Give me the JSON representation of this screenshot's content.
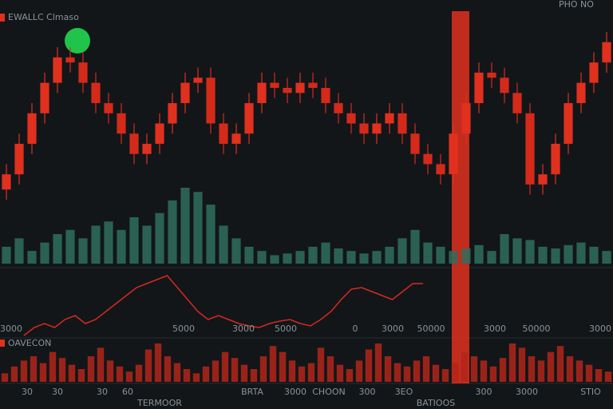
{
  "header": {
    "title": "EWALLC Clmaso",
    "tools": "PHO NO"
  },
  "chart_data": [
    {
      "type": "candlestick",
      "open": [
        55,
        70,
        100,
        130,
        160,
        185,
        180,
        160,
        140,
        130,
        110,
        90,
        100,
        120,
        140,
        160,
        165,
        120,
        100,
        110,
        140,
        160,
        155,
        150,
        160,
        155,
        140,
        130,
        120,
        110,
        120,
        130,
        110,
        90,
        80,
        70,
        110,
        140,
        170,
        165,
        150,
        130,
        60,
        70,
        100,
        140,
        160,
        180
      ],
      "close": [
        70,
        100,
        130,
        160,
        185,
        180,
        160,
        140,
        130,
        110,
        90,
        100,
        120,
        140,
        160,
        165,
        120,
        100,
        110,
        140,
        160,
        155,
        150,
        160,
        155,
        140,
        130,
        120,
        110,
        120,
        130,
        110,
        90,
        80,
        70,
        110,
        140,
        170,
        165,
        150,
        130,
        60,
        70,
        100,
        140,
        160,
        180,
        200
      ],
      "high": [
        80,
        110,
        140,
        170,
        195,
        195,
        190,
        170,
        150,
        140,
        120,
        110,
        130,
        150,
        170,
        175,
        175,
        130,
        120,
        150,
        170,
        170,
        165,
        170,
        170,
        165,
        150,
        140,
        130,
        130,
        140,
        140,
        120,
        100,
        90,
        120,
        150,
        180,
        180,
        175,
        160,
        140,
        80,
        110,
        150,
        170,
        190,
        210
      ],
      "low": [
        45,
        60,
        90,
        120,
        150,
        170,
        150,
        130,
        120,
        100,
        80,
        80,
        90,
        110,
        130,
        150,
        110,
        90,
        90,
        100,
        130,
        145,
        140,
        140,
        145,
        130,
        120,
        110,
        100,
        100,
        110,
        100,
        80,
        70,
        60,
        60,
        100,
        130,
        155,
        140,
        120,
        50,
        50,
        60,
        90,
        130,
        150,
        170
      ],
      "up_color": "#e0301e",
      "down_color": "#d42a1a"
    },
    {
      "type": "bar",
      "color": "#2f6f5e",
      "values": [
        20,
        30,
        15,
        25,
        35,
        40,
        30,
        45,
        50,
        40,
        55,
        45,
        60,
        75,
        90,
        85,
        70,
        45,
        30,
        20,
        15,
        10,
        12,
        15,
        20,
        25,
        18,
        15,
        12,
        15,
        20,
        30,
        40,
        25,
        20,
        15,
        18,
        22,
        15,
        35,
        30,
        28,
        20,
        18,
        22,
        25,
        20,
        15
      ]
    },
    {
      "type": "line",
      "color": "#d42a1f",
      "values": [
        10,
        20,
        25,
        20,
        30,
        35,
        25,
        30,
        40,
        50,
        60,
        70,
        75,
        80,
        85,
        70,
        55,
        40,
        30,
        35,
        30,
        25,
        22,
        20,
        25,
        28,
        30,
        25,
        22,
        30,
        40,
        55,
        68,
        70,
        65,
        60,
        55,
        65,
        75,
        75
      ]
    },
    {
      "type": "bar",
      "title": "OAVECON",
      "color": "#b3261a",
      "values": [
        10,
        18,
        25,
        30,
        22,
        35,
        28,
        20,
        15,
        30,
        40,
        25,
        18,
        12,
        20,
        38,
        45,
        30,
        22,
        15,
        10,
        18,
        25,
        35,
        28,
        20,
        15,
        30,
        42,
        35,
        25,
        18,
        22,
        40,
        30,
        20,
        15,
        25,
        38,
        45,
        30,
        22,
        18,
        25,
        30,
        20,
        15,
        22,
        35,
        30,
        25,
        18,
        28,
        45,
        40,
        30,
        25,
        35,
        42,
        30,
        25,
        20,
        15,
        12
      ]
    }
  ],
  "mid_labels": [
    "3000",
    "5000",
    "3000",
    "5000",
    "0",
    "3000",
    "50000",
    "3000",
    "50000",
    "3000"
  ],
  "bottom_labels": [
    "30",
    "30",
    "30",
    "60",
    "BRTA",
    "3000",
    "CHOON",
    "300",
    "3EO",
    "300",
    "3000",
    "STIO"
  ],
  "captions": [
    "TERMOOR",
    "BATIOOS"
  ]
}
